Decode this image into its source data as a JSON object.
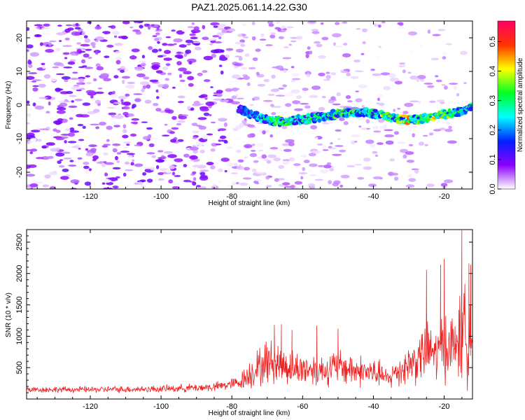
{
  "title": "PAZ1.2025.061.14.22.G30",
  "chart_data": [
    {
      "type": "heatmap",
      "xlabel": "Height of straight line (km)",
      "ylabel": "Frequency (Hz)",
      "xlim": [
        -138,
        -12
      ],
      "ylim": [
        -25,
        25
      ],
      "x_ticks": [
        -120,
        -100,
        -80,
        -60,
        -40,
        -20
      ],
      "x_tick_labels": [
        "-120",
        "-100",
        "-80",
        "-60",
        "-40",
        "-20"
      ],
      "y_ticks": [
        -20,
        -10,
        0,
        10,
        20
      ],
      "y_tick_labels": [
        "-20",
        "-10",
        "0",
        "10",
        "20"
      ],
      "colorbar": {
        "label": "Normalized spectral amplitude",
        "range": [
          0,
          0.57
        ],
        "ticks": [
          0.0,
          0.1,
          0.2,
          0.3,
          0.4,
          0.5
        ],
        "tick_labels": [
          "0.0",
          "0.1",
          "0.2",
          "0.3",
          "0.4",
          "0.5"
        ],
        "colors": [
          "#ffffff",
          "#8a00ff",
          "#0022ff",
          "#00ffff",
          "#00ff22",
          "#ffff00",
          "#ff3300",
          "#ff0066"
        ]
      },
      "ridge": {
        "x": [
          -78,
          -74,
          -70,
          -66,
          -62,
          -58,
          -54,
          -50,
          -46,
          -42,
          -38,
          -34,
          -30,
          -26,
          -22,
          -18,
          -14,
          -12
        ],
        "y": [
          -1,
          -3,
          -4.5,
          -5,
          -4.5,
          -4,
          -3.5,
          -2.5,
          -2.5,
          -2,
          -3,
          -4,
          -4.5,
          -4,
          -3,
          -2.5,
          -1.5,
          0
        ],
        "amplitude": [
          0.2,
          0.25,
          0.32,
          0.4,
          0.3,
          0.35,
          0.33,
          0.38,
          0.36,
          0.3,
          0.42,
          0.35,
          0.52,
          0.34,
          0.48,
          0.38,
          0.35,
          0.3
        ]
      },
      "noise_floor": 0.08
    },
    {
      "type": "line",
      "xlabel": "Height of straight line (km)",
      "ylabel": "SNR (10 * v/v)",
      "xlim": [
        -138,
        -12
      ],
      "ylim": [
        0,
        2700
      ],
      "x_ticks": [
        -120,
        -100,
        -80,
        -60,
        -40,
        -20
      ],
      "x_tick_labels": [
        "-120",
        "-100",
        "-80",
        "-60",
        "-40",
        "-20"
      ],
      "y_ticks": [
        500,
        1000,
        1500,
        2000,
        2500
      ],
      "y_tick_labels": [
        "500",
        "1000",
        "1500",
        "2000",
        "2500"
      ],
      "color": "#ee2222",
      "envelope": {
        "x": [
          -138,
          -120,
          -100,
          -85,
          -78,
          -75,
          -70,
          -66,
          -62,
          -58,
          -54,
          -50,
          -46,
          -42,
          -38,
          -36,
          -34,
          -30,
          -27,
          -25,
          -22,
          -20,
          -18,
          -15,
          -13,
          -12
        ],
        "base": [
          150,
          150,
          160,
          190,
          260,
          400,
          600,
          550,
          480,
          480,
          460,
          520,
          470,
          430,
          400,
          300,
          420,
          550,
          650,
          800,
          700,
          900,
          800,
          1000,
          1100,
          1000
        ],
        "spread": [
          60,
          60,
          70,
          90,
          130,
          300,
          450,
          400,
          330,
          330,
          310,
          350,
          330,
          300,
          250,
          200,
          300,
          400,
          500,
          650,
          550,
          700,
          650,
          900,
          1000,
          850
        ]
      },
      "peaks": [
        {
          "x": -68,
          "y": 1180
        },
        {
          "x": -66,
          "y": 1190
        },
        {
          "x": -63,
          "y": 1100
        },
        {
          "x": -56,
          "y": 1170
        },
        {
          "x": -50,
          "y": 1120
        },
        {
          "x": -25,
          "y": 2060
        },
        {
          "x": -21,
          "y": 2140
        },
        {
          "x": -20,
          "y": 2230
        },
        {
          "x": -15,
          "y": 2690
        },
        {
          "x": -13,
          "y": 2160
        },
        {
          "x": -12.5,
          "y": 2140
        }
      ]
    }
  ]
}
